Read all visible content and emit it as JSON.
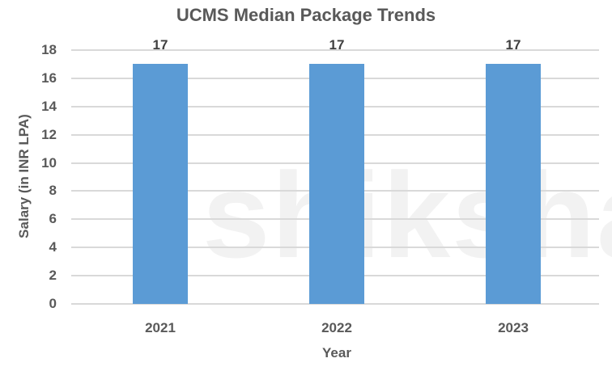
{
  "chart_data": {
    "type": "bar",
    "title": "UCMS Median Package Trends",
    "xlabel": "Year",
    "ylabel": "Salary (in INR LPA)",
    "categories": [
      "2021",
      "2022",
      "2023"
    ],
    "values": [
      17,
      17,
      17
    ],
    "data_labels": [
      "17",
      "17",
      "17"
    ],
    "yticks": [
      "0",
      "2",
      "4",
      "6",
      "8",
      "10",
      "12",
      "14",
      "16",
      "18"
    ],
    "ylim": [
      0,
      18
    ],
    "grid": true,
    "legend": "none",
    "bar_color": "#5b9bd5"
  },
  "watermark": "shiksha"
}
